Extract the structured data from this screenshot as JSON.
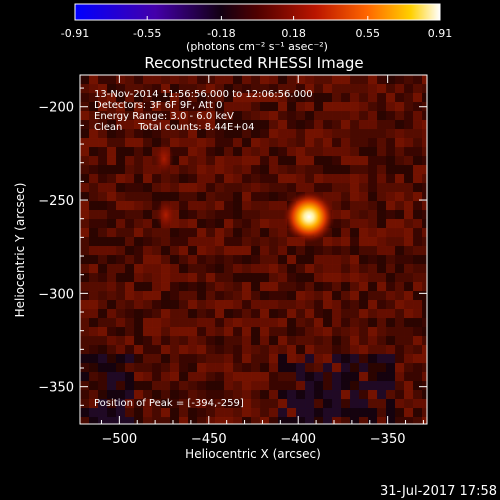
{
  "chart_data": {
    "type": "heatmap",
    "title": "Reconstructed RHESSI Image",
    "xlabel": "Heliocentric X (arcsec)",
    "ylabel": "Heliocentric Y (arcsec)",
    "xlim": [
      -522,
      -328
    ],
    "ylim": [
      -370,
      -183
    ],
    "xticks": [
      -500,
      -450,
      -400,
      -350
    ],
    "yticks": [
      -200,
      -250,
      -300,
      -350
    ],
    "colorbar": {
      "min": -0.91,
      "max": 0.91,
      "ticks": [
        "-0.91",
        "-0.55",
        "-0.18",
        "0.18",
        "0.55",
        "0.91"
      ],
      "tick_values": [
        -0.91,
        -0.55,
        -0.18,
        0.18,
        0.55,
        0.91
      ],
      "units": "(photons cm⁻² s⁻¹ asec⁻²)",
      "colormap": [
        "#0000ff",
        "#4400aa",
        "#000000",
        "#500000",
        "#bb1500",
        "#ff6600",
        "#ffd000",
        "#ffffff"
      ]
    },
    "annotations": [
      "13-Nov-2014 11:56:56.000 to 12:06:56.000",
      "Detectors: 3F 6F 9F, Att 0",
      "Energy Range: 3.0 - 6.0 keV",
      "Clean     Total counts: 8.44E+04"
    ],
    "peak_label": "Position of Peak = [-394,-259]",
    "peak": {
      "x": -394,
      "y": -259,
      "value": 0.91
    },
    "secondary_sources": [
      {
        "x": -474,
        "y": -258,
        "value": 0.22
      },
      {
        "x": -475,
        "y": -228,
        "value": 0.15
      }
    ],
    "grid": false
  },
  "footer": {
    "timestamp": "31-Jul-2017 17:58"
  }
}
